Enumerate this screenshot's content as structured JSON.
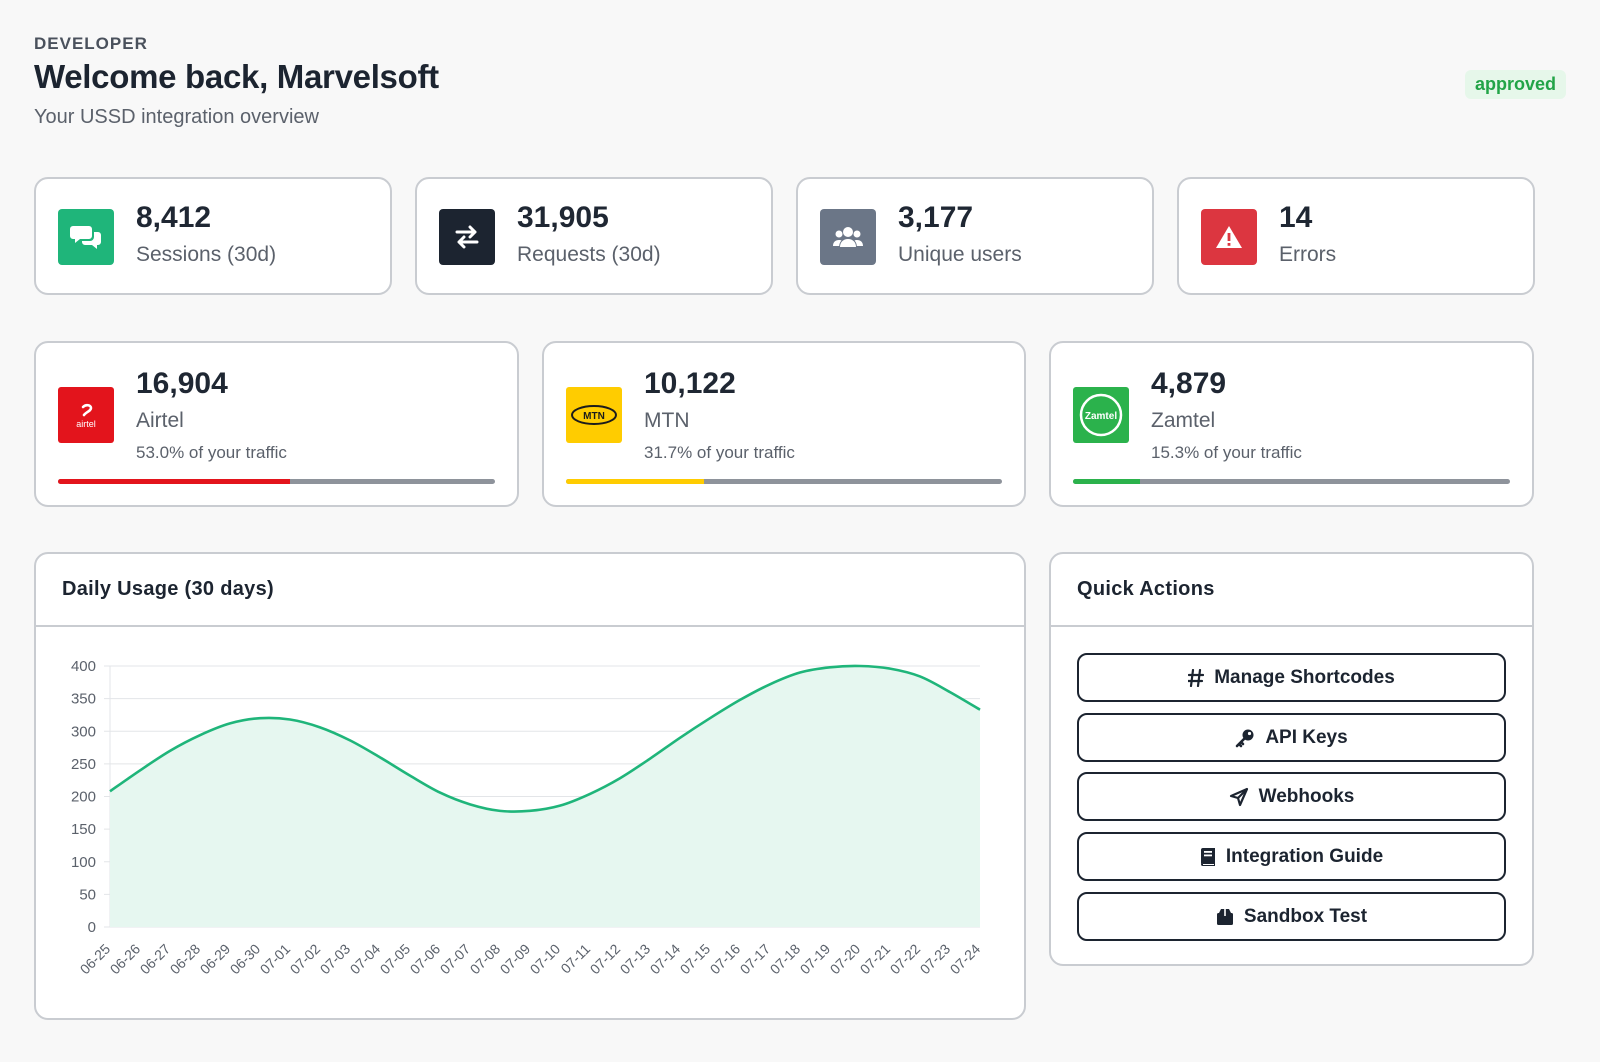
{
  "header": {
    "eyebrow": "DEVELOPER",
    "title": "Welcome back, Marvelsoft",
    "subtitle": "Your USSD integration overview",
    "status_badge": "approved"
  },
  "stats": [
    {
      "value": "8,412",
      "label": "Sessions (30d)",
      "icon": "chat-bubbles-icon",
      "color": "#1fb57a"
    },
    {
      "value": "31,905",
      "label": "Requests (30d)",
      "icon": "swap-arrows-icon",
      "color": "#1c2430"
    },
    {
      "value": "3,177",
      "label": "Unique users",
      "icon": "users-icon",
      "color": "#6b7687"
    },
    {
      "value": "14",
      "label": "Errors",
      "icon": "warning-icon",
      "color": "#dc3640"
    }
  ],
  "networks": [
    {
      "value": "16,904",
      "name": "Airtel",
      "share_text": "53.0% of your traffic",
      "share": 0.53,
      "color": "#e3141c",
      "logo": "airtel-logo",
      "logo_text": "airtel"
    },
    {
      "value": "10,122",
      "name": "MTN",
      "share_text": "31.7% of your traffic",
      "share": 0.317,
      "color": "#ffcc00",
      "logo": "mtn-logo",
      "logo_text": "MTN"
    },
    {
      "value": "4,879",
      "name": "Zamtel",
      "share_text": "15.3% of your traffic",
      "share": 0.153,
      "color": "#2bb24c",
      "logo": "zamtel-logo",
      "logo_text": "Zamtel"
    }
  ],
  "usage_panel": {
    "title": "Daily Usage (30 days)"
  },
  "quick_actions": {
    "title": "Quick Actions",
    "buttons": [
      {
        "label": "Manage Shortcodes",
        "icon": "hash-icon"
      },
      {
        "label": "API Keys",
        "icon": "key-icon"
      },
      {
        "label": "Webhooks",
        "icon": "send-icon"
      },
      {
        "label": "Integration Guide",
        "icon": "book-icon"
      },
      {
        "label": "Sandbox Test",
        "icon": "box-icon"
      }
    ]
  },
  "chart_data": {
    "type": "area",
    "title": "",
    "xlabel": "",
    "ylabel": "",
    "ylim": [
      0,
      400
    ],
    "yticks": [
      0,
      50,
      100,
      150,
      200,
      250,
      300,
      350,
      400
    ],
    "grid": true,
    "line_color": "#1fb57a",
    "fill_color": "#e6f7f0",
    "categories": [
      "06-25",
      "06-26",
      "06-27",
      "06-28",
      "06-29",
      "06-30",
      "07-01",
      "07-02",
      "07-03",
      "07-04",
      "07-05",
      "07-06",
      "07-07",
      "07-08",
      "07-09",
      "07-10",
      "07-11",
      "07-12",
      "07-13",
      "07-14",
      "07-15",
      "07-16",
      "07-17",
      "07-18",
      "07-19",
      "07-20",
      "07-21",
      "07-22",
      "07-23",
      "07-24"
    ],
    "values": [
      208,
      240,
      270,
      294,
      312,
      320,
      318,
      306,
      286,
      260,
      232,
      206,
      188,
      178,
      178,
      186,
      204,
      228,
      258,
      290,
      320,
      348,
      372,
      390,
      398,
      400,
      396,
      384,
      360,
      333
    ]
  }
}
